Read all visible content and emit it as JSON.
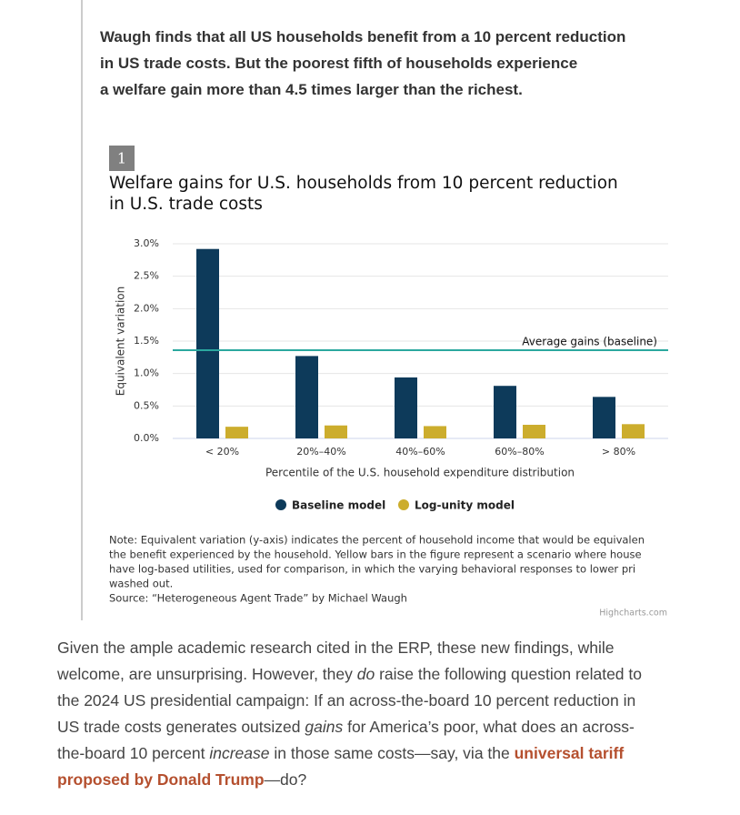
{
  "pullquote": [
    "Waugh finds that all US households benefit from a 10 percent reduction",
    "in US trade costs. But the poorest fifth of households experience",
    "a welfare gain more than 4.5 times larger than the richest."
  ],
  "chart_data": {
    "type": "bar",
    "number": "1",
    "title": [
      "Welfare gains for U.S. households from 10 percent reduction",
      "in U.S. trade costs"
    ],
    "categories": [
      "< 20%",
      "20%–40%",
      "40%–60%",
      "60%–80%",
      "> 80%"
    ],
    "series": [
      {
        "name": "Baseline model",
        "color": "#0d3a5a",
        "values": [
          2.92,
          1.27,
          0.94,
          0.81,
          0.64
        ]
      },
      {
        "name": "Log-unity model",
        "color": "#ccad2d",
        "values": [
          0.18,
          0.2,
          0.19,
          0.21,
          0.22
        ]
      }
    ],
    "ylim": [
      0,
      3
    ],
    "yticks": [
      {
        "value": 0,
        "label": "0.0%"
      },
      {
        "value": 0.5,
        "label": "0.5%"
      },
      {
        "value": 1,
        "label": "1.0%"
      },
      {
        "value": 1.5,
        "label": "1.5%"
      },
      {
        "value": 2,
        "label": "2.0%"
      },
      {
        "value": 2.5,
        "label": "2.5%"
      },
      {
        "value": 3,
        "label": "3.0%"
      }
    ],
    "grid": true,
    "ylabel": "Equivalent variation",
    "xlabel": "Percentile of the U.S. household expenditure distribution",
    "reference_line": {
      "value": 1.36,
      "label": "Average gains (baseline)",
      "color": "#2ba89f"
    },
    "note": [
      "Note: Equivalent variation (y-axis) indicates the percent of household income that would be equivalen",
      "the benefit experienced by the household. Yellow bars in the figure represent a scenario where house",
      "have log-based utilities, used for comparison, in which the varying behavioral responses to lower pri",
      "washed out."
    ],
    "source": "Source: “Heterogeneous Agent Trade” by Michael Waugh",
    "credit": "Highcharts.com"
  },
  "paragraph": [
    [
      {
        "text": "Given the ample academic research cited in the ERP, these new findings, while"
      }
    ],
    [
      {
        "text": "welcome, are unsurprising. However, they "
      },
      {
        "text": "do",
        "style": "italic"
      },
      {
        "text": " raise the following question related to"
      }
    ],
    [
      {
        "text": "the 2024 US presidential campaign: If an across-the-board 10 percent reduction in"
      }
    ],
    [
      {
        "text": "US trade costs generates outsized "
      },
      {
        "text": "gains",
        "style": "italic"
      },
      {
        "text": " for America’s poor, what does an across-"
      }
    ],
    [
      {
        "text": "the-board 10 percent "
      },
      {
        "text": "increase",
        "style": "italic"
      },
      {
        "text": " in those same costs—say, via the "
      },
      {
        "text": "universal tariff",
        "style": "link"
      }
    ],
    [
      {
        "text": "proposed by Donald Trump",
        "style": "link"
      },
      {
        "text": "—do?"
      }
    ]
  ]
}
